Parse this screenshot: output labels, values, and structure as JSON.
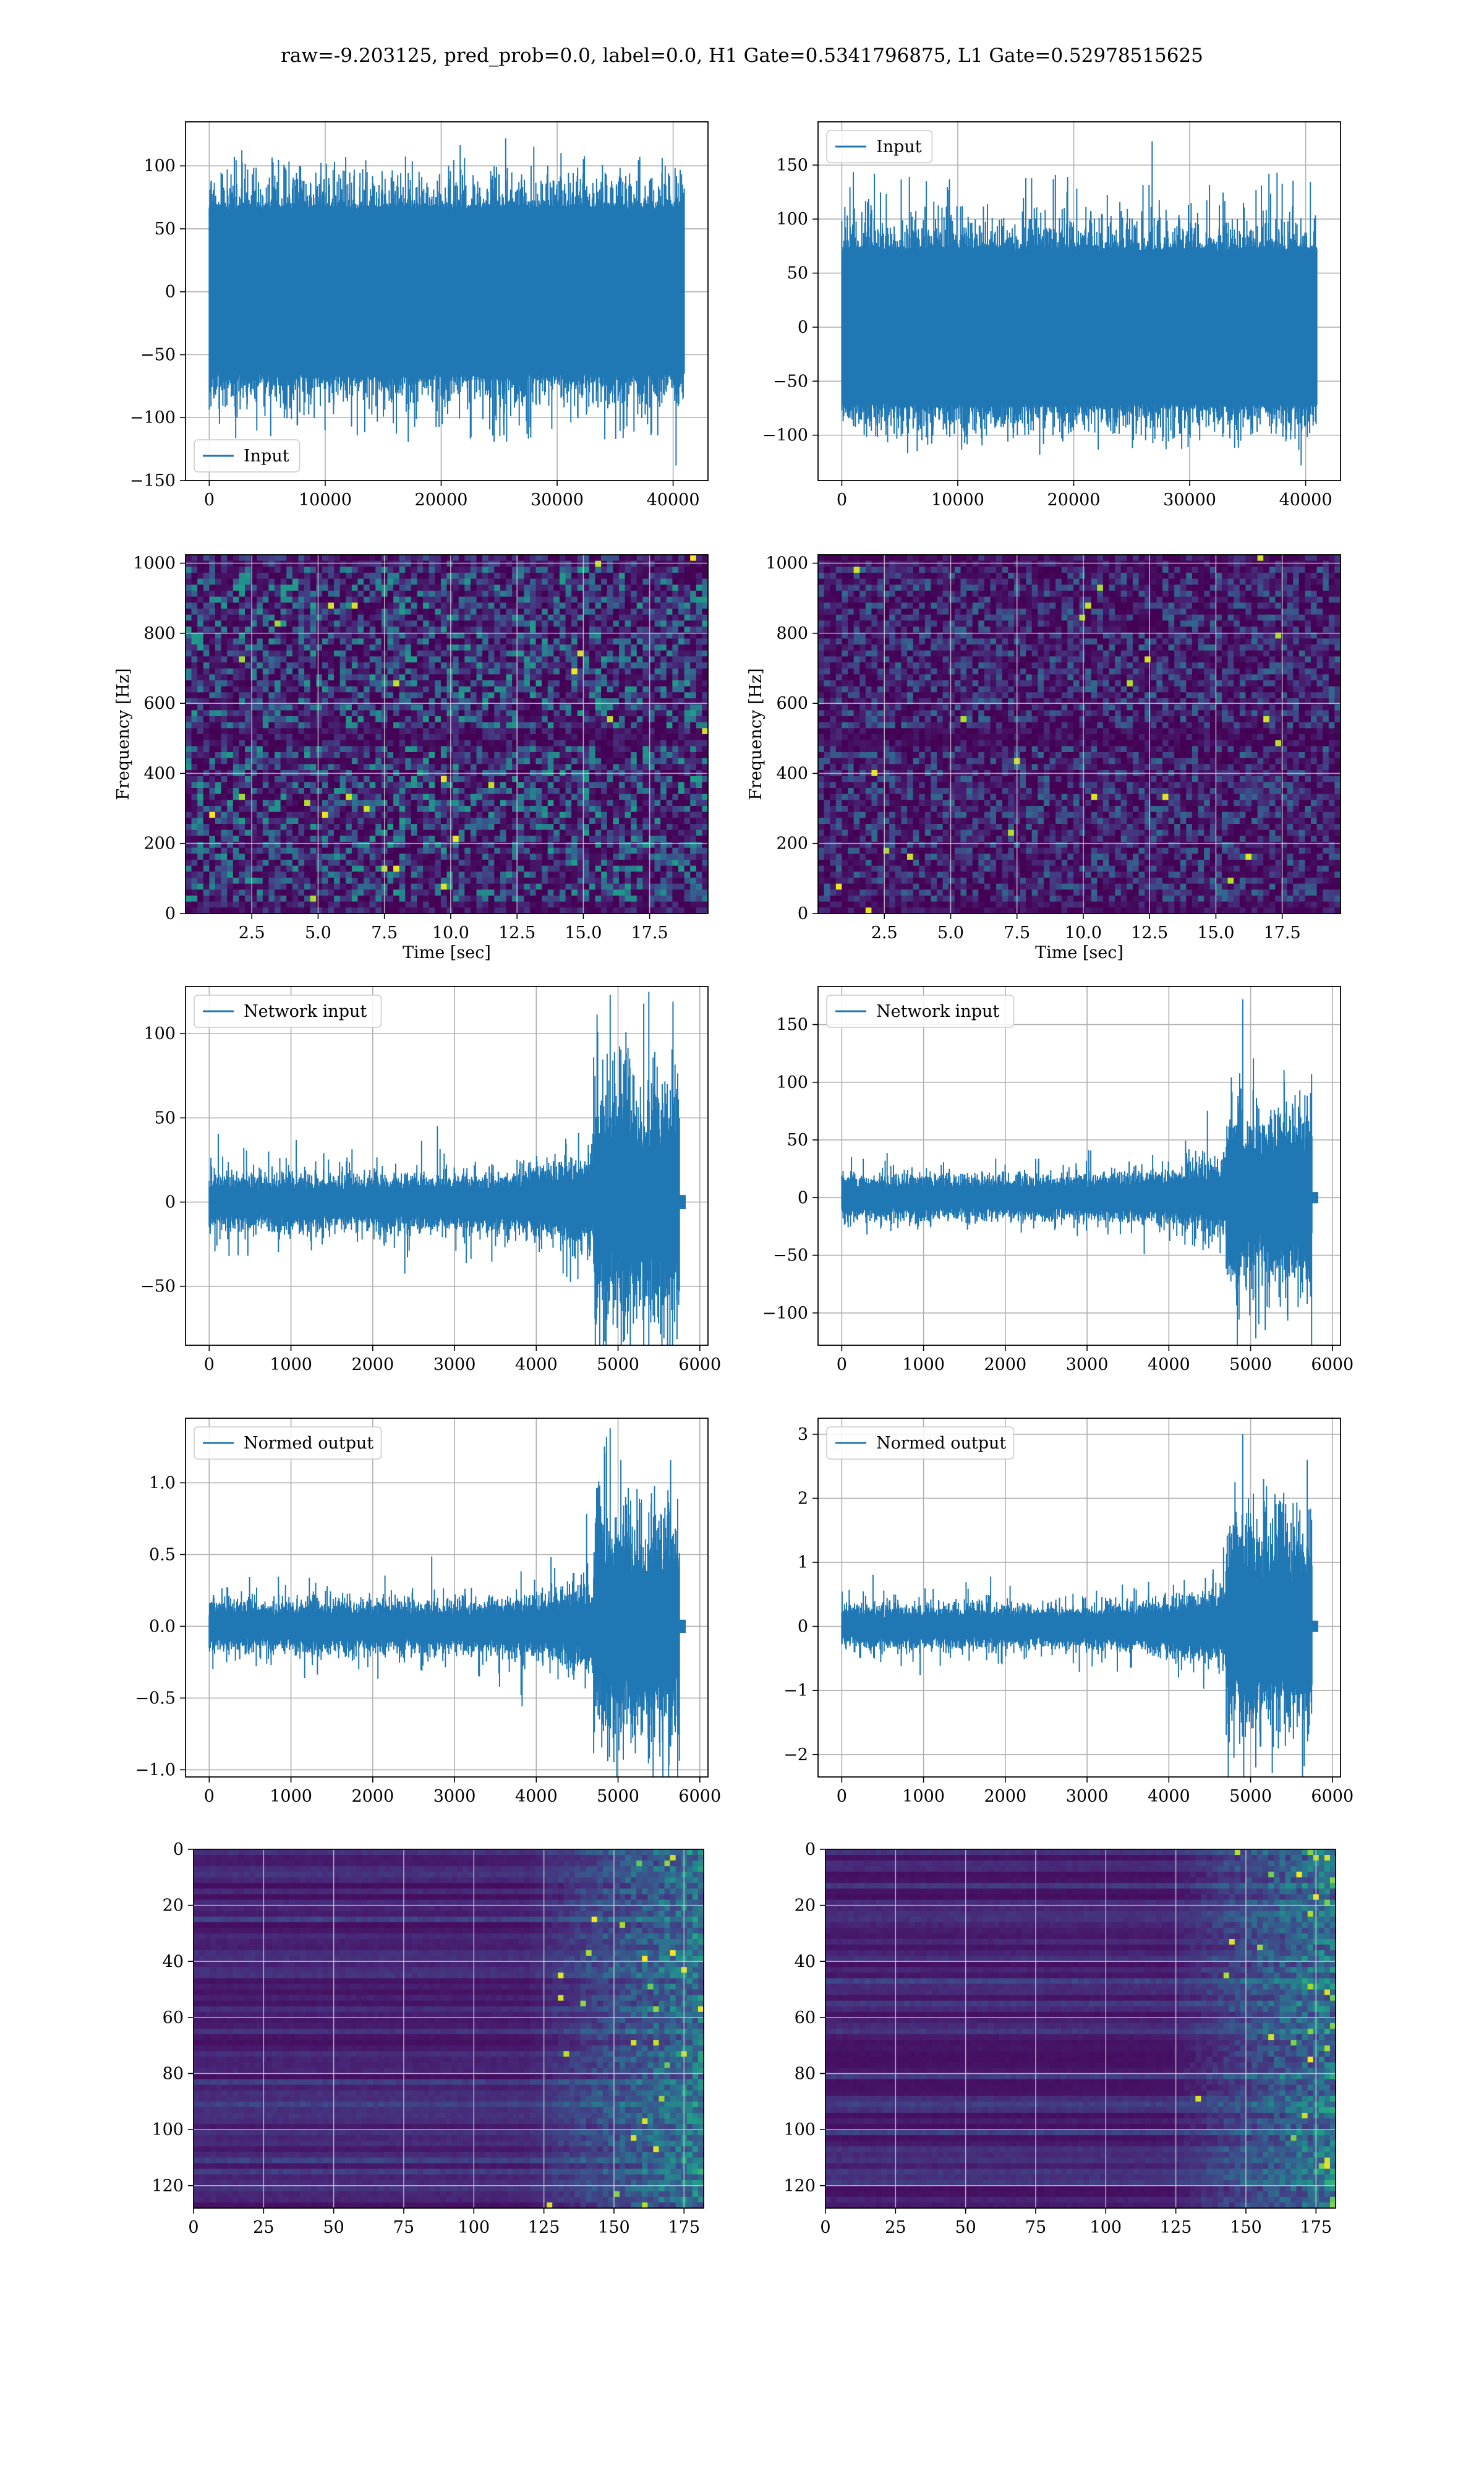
{
  "figure": {
    "title": "raw=-9.203125, pred_prob=0.0, label=0.0, H1 Gate=0.5341796875, L1 Gate=0.52978515625"
  },
  "colors": {
    "line": "#1f77b4",
    "viridis_low": "#440154",
    "grid": "#b0b0b0"
  },
  "chart_data": [
    {
      "id": "h1-input",
      "type": "line",
      "legend": [
        "Input"
      ],
      "legend_loc": "lower-left",
      "xlim": [
        -2048,
        43008
      ],
      "ylim": [
        -150,
        135
      ],
      "xticks": [
        0,
        10000,
        20000,
        30000,
        40000
      ],
      "xtick_labels": [
        "0",
        "10000",
        "20000",
        "30000",
        "40000"
      ],
      "yticks": [
        -150,
        -100,
        -50,
        0,
        50,
        100
      ],
      "ytick_labels": [
        "−150",
        "−100",
        "−50",
        "0",
        "50",
        "100"
      ],
      "xlabel": "",
      "ylabel": "",
      "grid": true,
      "signal": {
        "x_start": 0,
        "x_end": 40960,
        "core_amplitude": 65,
        "peak_max": 122,
        "peak_min": -138
      }
    },
    {
      "id": "l1-input",
      "type": "line",
      "legend": [
        "Input"
      ],
      "legend_loc": "upper-left",
      "xlim": [
        -2048,
        43008
      ],
      "ylim": [
        -142,
        190
      ],
      "xticks": [
        0,
        10000,
        20000,
        30000,
        40000
      ],
      "xtick_labels": [
        "0",
        "10000",
        "20000",
        "30000",
        "40000"
      ],
      "yticks": [
        -100,
        -50,
        0,
        50,
        100,
        150
      ],
      "ytick_labels": [
        "−100",
        "−50",
        "0",
        "50",
        "100",
        "150"
      ],
      "xlabel": "",
      "ylabel": "",
      "grid": true,
      "signal": {
        "x_start": 0,
        "x_end": 40960,
        "core_amplitude": 70,
        "peak_max": 172,
        "peak_min": -128
      }
    },
    {
      "id": "h1-spectrogram",
      "type": "heatmap",
      "xlim": [
        0,
        19.7
      ],
      "ylim": [
        0,
        1024
      ],
      "xticks": [
        2.5,
        5.0,
        7.5,
        10.0,
        12.5,
        15.0,
        17.5
      ],
      "xtick_labels": [
        "2.5",
        "5.0",
        "7.5",
        "10.0",
        "12.5",
        "15.0",
        "17.5"
      ],
      "yticks": [
        0,
        200,
        400,
        600,
        800,
        1000
      ],
      "ytick_labels": [
        "0",
        "200",
        "400",
        "600",
        "800",
        "1000"
      ],
      "xlabel": "Time [sec]",
      "ylabel": "Frequency [Hz]",
      "colormap": "viridis",
      "grid": true,
      "intensity": 0.55
    },
    {
      "id": "l1-spectrogram",
      "type": "heatmap",
      "xlim": [
        0,
        19.7
      ],
      "ylim": [
        0,
        1024
      ],
      "xticks": [
        2.5,
        5.0,
        7.5,
        10.0,
        12.5,
        15.0,
        17.5
      ],
      "xtick_labels": [
        "2.5",
        "5.0",
        "7.5",
        "10.0",
        "12.5",
        "15.0",
        "17.5"
      ],
      "yticks": [
        0,
        200,
        400,
        600,
        800,
        1000
      ],
      "ytick_labels": [
        "0",
        "200",
        "400",
        "600",
        "800",
        "1000"
      ],
      "xlabel": "Time [sec]",
      "ylabel": "Frequency [Hz]",
      "colormap": "viridis",
      "grid": true,
      "intensity": 0.35
    },
    {
      "id": "h1-network-input",
      "type": "line",
      "legend": [
        "Network input"
      ],
      "legend_loc": "upper-left",
      "xlim": [
        -290,
        6100
      ],
      "ylim": [
        -85,
        128
      ],
      "xticks": [
        0,
        1000,
        2000,
        3000,
        4000,
        5000,
        6000
      ],
      "xtick_labels": [
        "0",
        "1000",
        "2000",
        "3000",
        "4000",
        "5000",
        "6000"
      ],
      "yticks": [
        -50,
        0,
        50,
        100
      ],
      "ytick_labels": [
        "−50",
        "0",
        "50",
        "100"
      ],
      "xlabel": "",
      "ylabel": "",
      "grid": true,
      "signal": {
        "x_start": 0,
        "x_end": 5750,
        "tail_end": 5820,
        "base_amplitude": 12,
        "burst_start": 4700,
        "burst_amplitude": 55,
        "peak_max": 123,
        "peak_min": -83
      }
    },
    {
      "id": "l1-network-input",
      "type": "line",
      "legend": [
        "Network input"
      ],
      "legend_loc": "upper-left",
      "xlim": [
        -290,
        6100
      ],
      "ylim": [
        -128,
        183
      ],
      "xticks": [
        0,
        1000,
        2000,
        3000,
        4000,
        5000,
        6000
      ],
      "xtick_labels": [
        "0",
        "1000",
        "2000",
        "3000",
        "4000",
        "5000",
        "6000"
      ],
      "yticks": [
        -100,
        -50,
        0,
        50,
        100,
        150
      ],
      "ytick_labels": [
        "−100",
        "−50",
        "0",
        "50",
        "100",
        "150"
      ],
      "xlabel": "",
      "ylabel": "",
      "grid": true,
      "signal": {
        "x_start": 0,
        "x_end": 5750,
        "tail_end": 5820,
        "base_amplitude": 14,
        "burst_start": 4700,
        "burst_amplitude": 60,
        "peak_max": 172,
        "peak_min": -122
      }
    },
    {
      "id": "h1-normed-output",
      "type": "line",
      "legend": [
        "Normed output"
      ],
      "legend_loc": "upper-left",
      "xlim": [
        -290,
        6100
      ],
      "ylim": [
        -1.05,
        1.45
      ],
      "xticks": [
        0,
        1000,
        2000,
        3000,
        4000,
        5000,
        6000
      ],
      "xtick_labels": [
        "0",
        "1000",
        "2000",
        "3000",
        "4000",
        "5000",
        "6000"
      ],
      "yticks": [
        -1.0,
        -0.5,
        0.0,
        0.5,
        1.0
      ],
      "ytick_labels": [
        "−1.0",
        "−0.5",
        "0.0",
        "0.5",
        "1.0"
      ],
      "xlabel": "",
      "ylabel": "",
      "grid": true,
      "signal": {
        "x_start": 0,
        "x_end": 5750,
        "tail_end": 5820,
        "base_amplitude": 0.13,
        "burst_start": 4700,
        "burst_amplitude": 0.6,
        "peak_max": 1.38,
        "peak_min": -0.93
      }
    },
    {
      "id": "l1-normed-output",
      "type": "line",
      "legend": [
        "Normed output"
      ],
      "legend_loc": "upper-left",
      "xlim": [
        -290,
        6100
      ],
      "ylim": [
        -2.35,
        3.25
      ],
      "xticks": [
        0,
        1000,
        2000,
        3000,
        4000,
        5000,
        6000
      ],
      "xtick_labels": [
        "0",
        "1000",
        "2000",
        "3000",
        "4000",
        "5000",
        "6000"
      ],
      "yticks": [
        -2,
        -1,
        0,
        1,
        2,
        3
      ],
      "ytick_labels": [
        "−2",
        "−1",
        "0",
        "1",
        "2",
        "3"
      ],
      "xlabel": "",
      "ylabel": "",
      "grid": true,
      "signal": {
        "x_start": 0,
        "x_end": 5750,
        "tail_end": 5820,
        "base_amplitude": 0.25,
        "burst_start": 4700,
        "burst_amplitude": 1.2,
        "peak_max": 3.0,
        "peak_min": -2.2
      }
    },
    {
      "id": "h1-feature-map",
      "type": "heatmap",
      "xlim": [
        0,
        182
      ],
      "ylim": [
        128,
        0
      ],
      "xticks": [
        0,
        25,
        50,
        75,
        100,
        125,
        150,
        175
      ],
      "xtick_labels": [
        "0",
        "25",
        "50",
        "75",
        "100",
        "125",
        "150",
        "175"
      ],
      "yticks": [
        0,
        20,
        40,
        60,
        80,
        100,
        120
      ],
      "ytick_labels": [
        "0",
        "20",
        "40",
        "60",
        "80",
        "100",
        "120"
      ],
      "xlabel": "",
      "ylabel": "",
      "colormap": "viridis",
      "grid": true,
      "activation_start": 118
    },
    {
      "id": "l1-feature-map",
      "type": "heatmap",
      "xlim": [
        0,
        182
      ],
      "ylim": [
        128,
        0
      ],
      "xticks": [
        0,
        25,
        50,
        75,
        100,
        125,
        150,
        175
      ],
      "xtick_labels": [
        "0",
        "25",
        "50",
        "75",
        "100",
        "125",
        "150",
        "175"
      ],
      "yticks": [
        0,
        20,
        40,
        60,
        80,
        100,
        120
      ],
      "ytick_labels": [
        "0",
        "20",
        "40",
        "60",
        "80",
        "100",
        "120"
      ],
      "xlabel": "",
      "ylabel": "",
      "colormap": "viridis",
      "grid": true,
      "activation_start": 122
    }
  ]
}
